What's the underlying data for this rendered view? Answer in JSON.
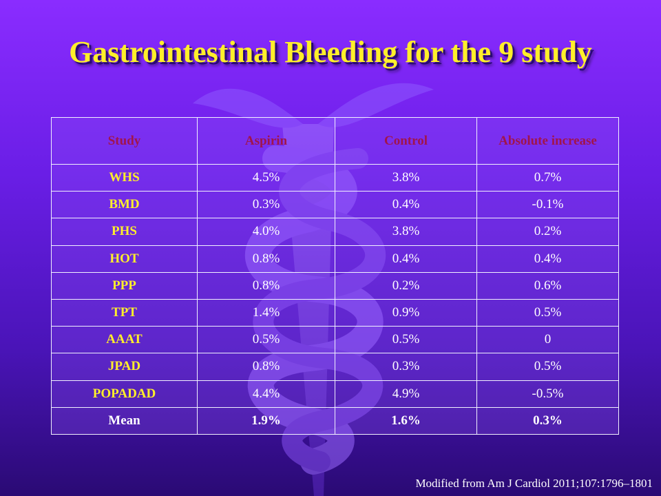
{
  "title": "Gastrointestinal Bleeding for the 9 study",
  "table": {
    "headers": [
      "Study",
      "Aspirin",
      "Control",
      "Absolute increase"
    ],
    "rows": [
      {
        "study": "WHS",
        "aspirin": "4.5%",
        "control": "3.8%",
        "increase": "0.7%"
      },
      {
        "study": "BMD",
        "aspirin": "0.3%",
        "control": "0.4%",
        "increase": "-0.1%"
      },
      {
        "study": "PHS",
        "aspirin": "4.0%",
        "control": "3.8%",
        "increase": "0.2%"
      },
      {
        "study": "HOT",
        "aspirin": "0.8%",
        "control": "0.4%",
        "increase": "0.4%"
      },
      {
        "study": "PPP",
        "aspirin": "0.8%",
        "control": "0.2%",
        "increase": "0.6%"
      },
      {
        "study": "TPT",
        "aspirin": "1.4%",
        "control": "0.9%",
        "increase": "0.5%"
      },
      {
        "study": "AAAT",
        "aspirin": "0.5%",
        "control": "0.5%",
        "increase": "0"
      },
      {
        "study": "JPAD",
        "aspirin": "0.8%",
        "control": "0.3%",
        "increase": "0.5%"
      },
      {
        "study": "POPADAD",
        "aspirin": "4.4%",
        "control": "4.9%",
        "increase": "-0.5%"
      }
    ],
    "mean": {
      "study": "Mean",
      "aspirin": "1.9%",
      "control": "1.6%",
      "increase": "0.3%"
    }
  },
  "source": "Modified from  Am J Cardiol 2011;107:1796–1801",
  "colors": {
    "title": "#ffef2a",
    "header": "#a0154d",
    "study_name": "#ffef2a",
    "value": "#ffffff",
    "background": "#6a1ee6"
  }
}
